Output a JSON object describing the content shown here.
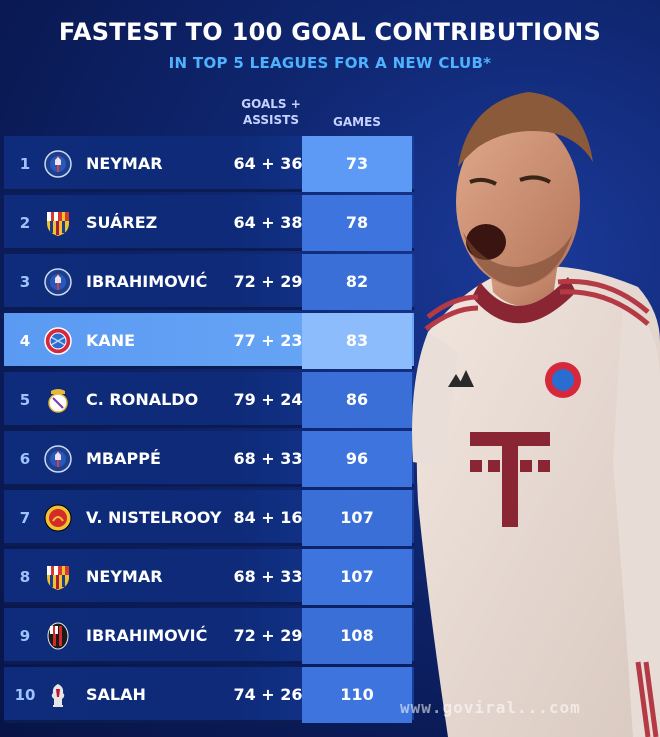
{
  "header": {
    "title": "FASTEST TO 100 GOAL CONTRIBUTIONS",
    "subtitle": "IN TOP 5 LEAGUES FOR A NEW CLUB*"
  },
  "columns": {
    "goals_assists": "GOALS + ASSISTS",
    "games": "GAMES"
  },
  "rows": [
    {
      "rank": "1",
      "club_icon": "psg-crest-icon",
      "name": "NEYMAR",
      "ga": "64 + 36",
      "games": "73"
    },
    {
      "rank": "2",
      "club_icon": "barcelona-crest-icon",
      "name": "SUÁREZ",
      "ga": "64 + 38",
      "games": "78"
    },
    {
      "rank": "3",
      "club_icon": "psg-crest-icon",
      "name": "IBRAHIMOVIĆ",
      "ga": "72 + 29",
      "games": "82"
    },
    {
      "rank": "4",
      "club_icon": "bayern-crest-icon",
      "name": "KANE",
      "ga": "77 + 23",
      "games": "83"
    },
    {
      "rank": "5",
      "club_icon": "real-madrid-crest-icon",
      "name": "C. RONALDO",
      "ga": "79 + 24",
      "games": "86"
    },
    {
      "rank": "6",
      "club_icon": "psg-crest-icon",
      "name": "MBAPPÉ",
      "ga": "68 + 33",
      "games": "96"
    },
    {
      "rank": "7",
      "club_icon": "man-united-crest-icon",
      "name": "V. NISTELROOY",
      "ga": "84 + 16",
      "games": "107"
    },
    {
      "rank": "8",
      "club_icon": "barcelona-crest-icon",
      "name": "NEYMAR",
      "ga": "68 + 33",
      "games": "107"
    },
    {
      "rank": "9",
      "club_icon": "ac-milan-crest-icon",
      "name": "IBRAHIMOVIĆ",
      "ga": "72 + 29",
      "games": "108"
    },
    {
      "rank": "10",
      "club_icon": "liverpool-crest-icon",
      "name": "SALAH",
      "ga": "74 + 26",
      "games": "110"
    }
  ],
  "highlight_rank": "4",
  "watermark": "www.goviral...com",
  "colors": {
    "background": "#0f2670",
    "subtitle": "#4fb2ff",
    "highlight_row": "#6aa7f6",
    "games_cell": "#3d74de"
  }
}
